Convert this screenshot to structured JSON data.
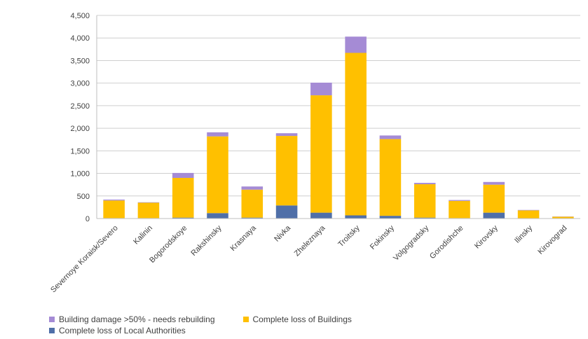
{
  "colors": {
    "damage": "#a58bd5",
    "loss_buildings": "#ffc000",
    "loss_local": "#4f6fa8",
    "gridline": "#cfcfcf",
    "axis": "#bfbfbf"
  },
  "chart_data": {
    "type": "bar",
    "stacked": true,
    "title": "",
    "xlabel": "",
    "ylabel": "",
    "ylim": [
      0,
      4500
    ],
    "yticks": [
      0,
      500,
      1000,
      1500,
      2000,
      2500,
      3000,
      3500,
      4000,
      4500
    ],
    "ytick_labels": [
      "0",
      "500",
      "1,000",
      "1,500",
      "2,000",
      "2,500",
      "3,000",
      "3,500",
      "4,000",
      "4,500"
    ],
    "grid": "horizontal",
    "legend_position": "bottom",
    "categories": [
      "Severnoye Koraisk/Severo",
      "Kalinin",
      "Bogorodskoye",
      "Rakshinsky",
      "Krasnaya",
      "Nivka",
      "Zheleznaya",
      "Troitsky",
      "Fokinsky",
      "Volgogradsky",
      "Gorodishche",
      "Kirovsky",
      "Ilinsky",
      "Kirovograd"
    ],
    "series": [
      {
        "name": "Complete loss of Local Authorities",
        "color_key": "loss_local",
        "values": [
          10,
          10,
          20,
          120,
          20,
          290,
          130,
          70,
          60,
          20,
          10,
          130,
          0,
          0
        ]
      },
      {
        "name": "Complete loss of Buildings",
        "color_key": "loss_buildings",
        "values": [
          390,
          340,
          880,
          1700,
          620,
          1540,
          2600,
          3600,
          1700,
          740,
          380,
          620,
          180,
          40
        ]
      },
      {
        "name": "Building damage >50% - needs rebuilding",
        "color_key": "damage",
        "values": [
          20,
          10,
          110,
          90,
          70,
          60,
          280,
          360,
          80,
          30,
          20,
          60,
          10,
          5
        ]
      }
    ]
  },
  "legend": {
    "damage_label": "Building damage >50% - needs rebuilding",
    "loss_buildings_label": "Complete loss of Buildings",
    "loss_local_label": "Complete loss of Local Authorities"
  }
}
